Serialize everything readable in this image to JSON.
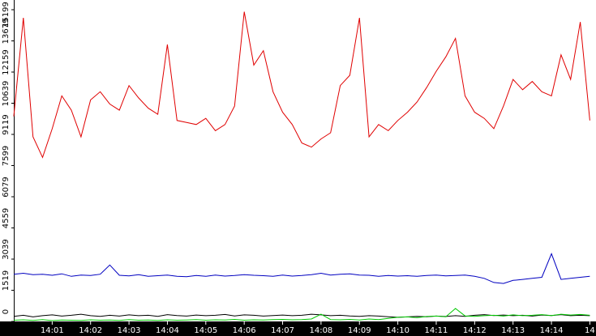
{
  "chart_data": {
    "type": "line",
    "x": [
      0,
      0.25,
      0.5,
      0.75,
      1,
      1.25,
      1.5,
      1.75,
      2,
      2.25,
      2.5,
      2.75,
      3,
      3.25,
      3.5,
      3.75,
      4,
      4.25,
      4.5,
      4.75,
      5,
      5.25,
      5.5,
      5.75,
      6,
      6.25,
      6.5,
      6.75,
      7,
      7.25,
      7.5,
      7.75,
      8,
      8.25,
      8.5,
      8.75,
      9,
      9.25,
      9.5,
      9.75,
      10,
      10.25,
      10.5,
      10.75,
      11,
      11.25,
      11.5,
      11.75,
      12,
      12.25,
      12.5,
      12.75,
      13,
      13.25,
      13.5,
      13.75,
      14,
      14.25,
      14.5,
      14.75,
      15
    ],
    "series": [
      {
        "color": "#e00000",
        "values": [
          10000,
          14800,
          9000,
          8000,
          9400,
          11000,
          10300,
          9000,
          10800,
          11200,
          10600,
          10300,
          11500,
          10900,
          10400,
          10100,
          13500,
          9800,
          9700,
          9600,
          9900,
          9300,
          9600,
          10500,
          15100,
          12500,
          13200,
          11200,
          10200,
          9600,
          8700,
          8500,
          8900,
          9200,
          11500,
          12000,
          14800,
          9000,
          9600,
          9300,
          9800,
          10200,
          10700,
          11400,
          12200,
          12900,
          13800,
          11000,
          10200,
          9900,
          9400,
          10500,
          11800,
          11300,
          11700,
          11200,
          11000,
          13000,
          11800,
          14600,
          9800
        ]
      },
      {
        "color": "#0000c0",
        "values": [
          2300,
          2350,
          2280,
          2300,
          2250,
          2320,
          2200,
          2260,
          2240,
          2300,
          2750,
          2250,
          2220,
          2280,
          2200,
          2230,
          2260,
          2200,
          2180,
          2240,
          2200,
          2260,
          2210,
          2240,
          2280,
          2250,
          2230,
          2200,
          2260,
          2210,
          2240,
          2280,
          2350,
          2260,
          2300,
          2320,
          2260,
          2250,
          2200,
          2240,
          2210,
          2230,
          2200,
          2240,
          2260,
          2220,
          2240,
          2260,
          2200,
          2100,
          1900,
          1850,
          2000,
          2050,
          2100,
          2150,
          3300,
          2050,
          2100,
          2150,
          2200
        ]
      },
      {
        "color": "#000000",
        "values": [
          250,
          300,
          220,
          280,
          320,
          260,
          300,
          350,
          280,
          250,
          300,
          260,
          320,
          280,
          300,
          250,
          330,
          290,
          260,
          310,
          280,
          300,
          340,
          270,
          320,
          300,
          260,
          290,
          310,
          280,
          300,
          350,
          320,
          280,
          300,
          270,
          250,
          280,
          260,
          230,
          200,
          220,
          250,
          230,
          260,
          240,
          280,
          250,
          300,
          330,
          290,
          310,
          280,
          300,
          260,
          310,
          290,
          330,
          280,
          300,
          280
        ]
      },
      {
        "color": "#00c800",
        "values": [
          60,
          80,
          50,
          90,
          40,
          70,
          60,
          50,
          80,
          60,
          70,
          50,
          90,
          60,
          70,
          50,
          80,
          60,
          70,
          90,
          60,
          80,
          70,
          100,
          60,
          80,
          70,
          90,
          100,
          80,
          90,
          120,
          350,
          90,
          80,
          100,
          70,
          120,
          90,
          150,
          200,
          220,
          180,
          240,
          260,
          230,
          630,
          270,
          250,
          280,
          300,
          260,
          320,
          280,
          300,
          330,
          290,
          350,
          310,
          340,
          300
        ]
      }
    ],
    "xlim": [
      0,
      15.16
    ],
    "xticks": [
      {
        "value": 1,
        "label": "14:01"
      },
      {
        "value": 2,
        "label": "14:02"
      },
      {
        "value": 3,
        "label": "14:03"
      },
      {
        "value": 4,
        "label": "14:04"
      },
      {
        "value": 5,
        "label": "14:05"
      },
      {
        "value": 6,
        "label": "14:06"
      },
      {
        "value": 7,
        "label": "14:07"
      },
      {
        "value": 8,
        "label": "14:08"
      },
      {
        "value": 9,
        "label": "14:09"
      },
      {
        "value": 10,
        "label": "14:10"
      },
      {
        "value": 11,
        "label": "14:11"
      },
      {
        "value": 12,
        "label": "14:12"
      },
      {
        "value": 13,
        "label": "14:13"
      },
      {
        "value": 14,
        "label": "14:14"
      },
      {
        "value": 15,
        "label": "14"
      }
    ],
    "ylim": [
      0,
      15199
    ],
    "yticks": [
      0,
      1519,
      3039,
      4559,
      6079,
      7599,
      9119,
      10639,
      12159,
      13679,
      15199
    ]
  }
}
